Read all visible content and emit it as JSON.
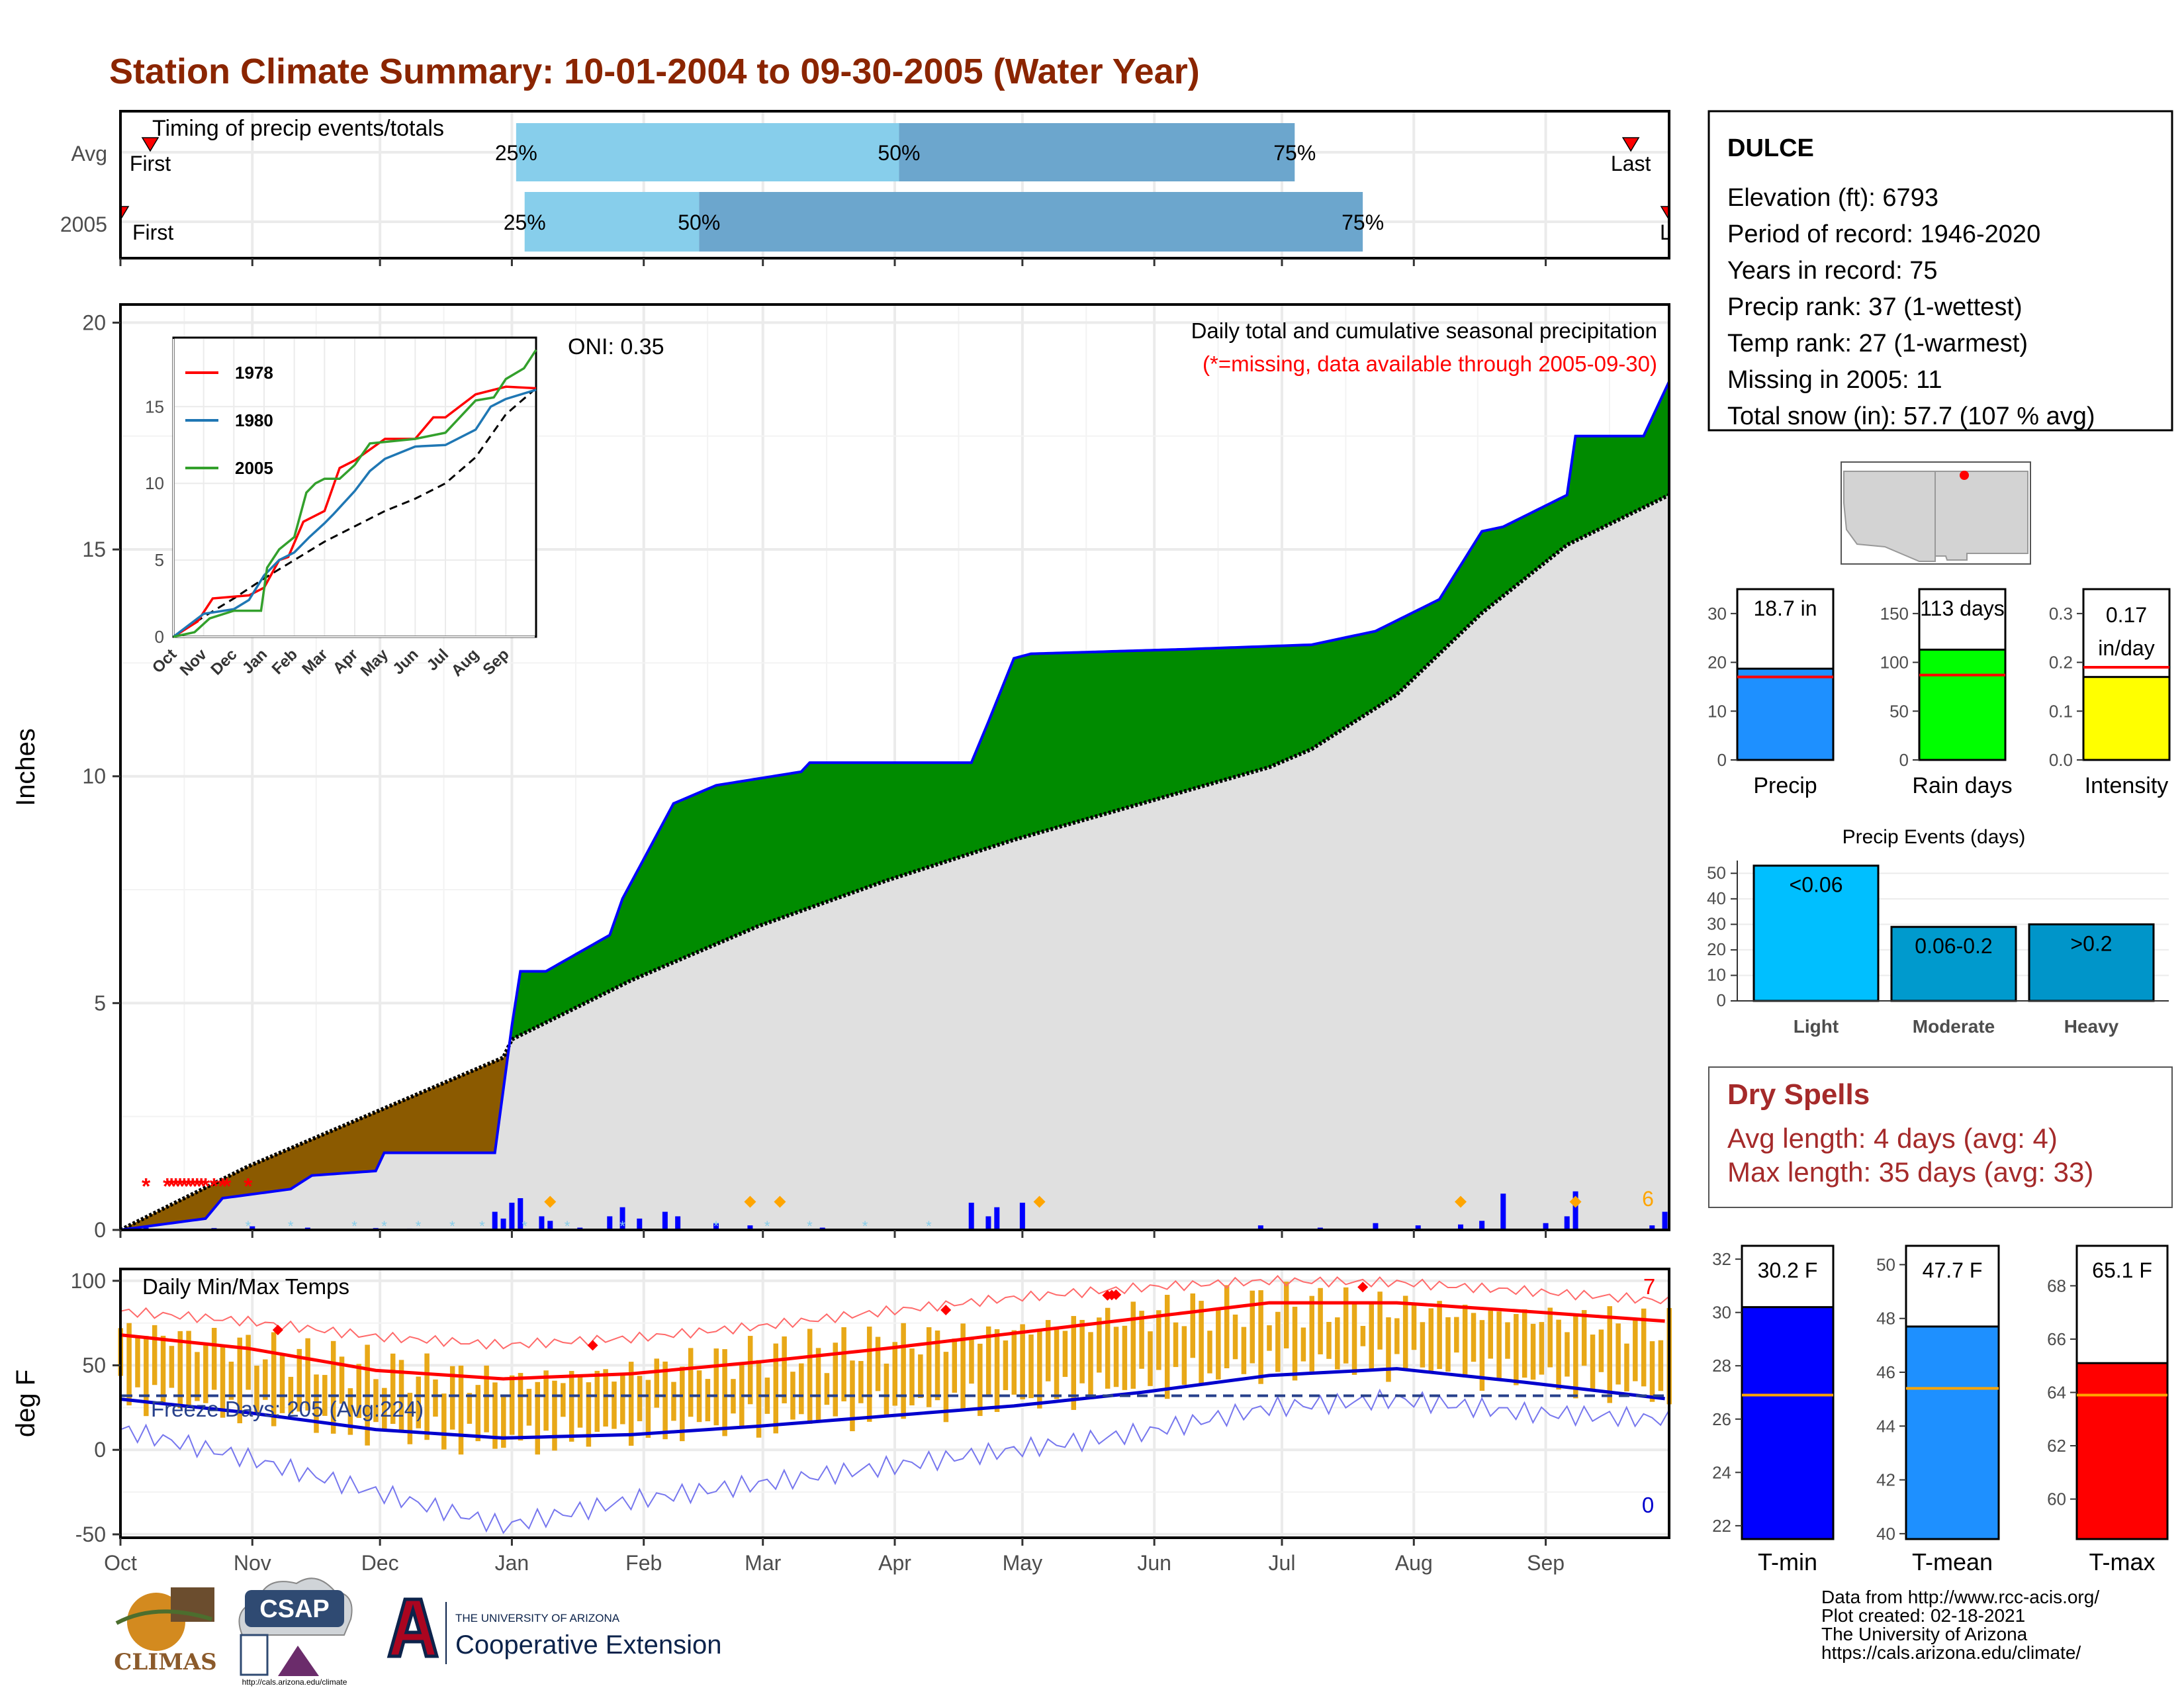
{
  "title": "Station Climate Summary: 10-01-2004 to 09-30-2005 (Water Year)",
  "timing": {
    "label": "Timing of precip events/totals",
    "rows": [
      {
        "name": "Avg",
        "first_label": "First",
        "last_label": "Last",
        "q": {
          "p25": "25%",
          "p50": "50%",
          "p75": "75%"
        },
        "p25_day": 93,
        "p50_day": 183,
        "p75_day": 276,
        "first_day": 7,
        "last_day": 355
      },
      {
        "name": "2005",
        "first_label": "First",
        "last_label": "Last",
        "q": {
          "p25": "25%",
          "p50": "50%",
          "p75": "75%"
        },
        "p25_day": 95,
        "p50_day": 136,
        "p75_day": 292,
        "first_day": 0,
        "last_day": 364
      }
    ],
    "colors": {
      "light": "#87CEEB",
      "dark": "#6CA6CD",
      "marker": "#FF0000"
    }
  },
  "precip_panel": {
    "ylabel": "Inches",
    "oni": "ONI: 0.35",
    "subtitle": "Daily total and cumulative seasonal precipitation",
    "missing_note": "(*=missing, data available through 2005-09-30)",
    "corner_count": "6",
    "ylim": [
      0,
      20.4
    ],
    "yticks": [
      "0",
      "5",
      "10",
      "15",
      "20"
    ],
    "colors": {
      "above": "#008B00",
      "below": "#8B5A00",
      "avg_fill": "#E0E0E0",
      "obs_line": "#0000FF",
      "bars": "#0000FF",
      "missing": "#FF0000",
      "snow": "#87CEEB",
      "extreme": "#FFA500"
    },
    "chart_data": {
      "type": "area",
      "x_unit": "days since 2004-10-01",
      "avg_cumulative": {
        "x": [
          0,
          30,
          60,
          90,
          92,
          120,
          150,
          180,
          210,
          240,
          270,
          280,
          300,
          320,
          340,
          364
        ],
        "y": [
          0,
          1.4,
          2.6,
          3.8,
          4.2,
          5.5,
          6.7,
          7.7,
          8.6,
          9.4,
          10.2,
          10.6,
          11.8,
          13.6,
          15.1,
          16.2
        ]
      },
      "observed_cumulative": {
        "x": [
          0,
          20,
          24,
          40,
          45,
          60,
          62,
          88,
          92,
          94,
          100,
          115,
          118,
          130,
          140,
          160,
          162,
          170,
          180,
          200,
          204,
          210,
          214,
          250,
          280,
          295,
          310,
          320,
          325,
          340,
          342,
          358,
          364
        ],
        "y": [
          0,
          0.25,
          0.7,
          0.9,
          1.2,
          1.3,
          1.7,
          1.7,
          4.5,
          5.7,
          5.7,
          6.5,
          7.3,
          9.4,
          9.8,
          10.1,
          10.3,
          10.3,
          10.3,
          10.3,
          11.2,
          12.6,
          12.7,
          12.8,
          12.9,
          13.2,
          13.9,
          15.4,
          15.5,
          16.2,
          17.5,
          17.5,
          18.7
        ]
      },
      "daily_bars": {
        "x": [
          6,
          14,
          22,
          31,
          44,
          60,
          68,
          88,
          90,
          92,
          94,
          99,
          101,
          108,
          115,
          118,
          122,
          128,
          131,
          140,
          148,
          165,
          200,
          204,
          206,
          212,
          268,
          282,
          295,
          305,
          315,
          320,
          325,
          335,
          340,
          342,
          360,
          363
        ],
        "y": [
          0.05,
          0.03,
          0.04,
          0.08,
          0.05,
          0.04,
          0.03,
          0.4,
          0.25,
          0.6,
          0.7,
          0.3,
          0.2,
          0.05,
          0.3,
          0.5,
          0.25,
          0.4,
          0.3,
          0.15,
          0.1,
          0.05,
          0.6,
          0.3,
          0.5,
          0.6,
          0.1,
          0.05,
          0.15,
          0.1,
          0.12,
          0.2,
          0.8,
          0.15,
          0.3,
          0.85,
          0.1,
          0.4
        ]
      },
      "missing_days": [
        6,
        11,
        12,
        13,
        14,
        15,
        16,
        17,
        18,
        19,
        20,
        22,
        24,
        25,
        30
      ],
      "extreme_days": [
        101,
        148,
        155,
        216,
        315,
        342
      ]
    },
    "inset": {
      "legend": [
        "1978",
        "1980",
        "2005"
      ],
      "colors": [
        "#FF0000",
        "#1F77B4",
        "#33A02C"
      ],
      "yticks": [
        "0",
        "5",
        "10",
        "15"
      ],
      "xticks": [
        "Oct",
        "Nov",
        "Dec",
        "Jan",
        "Feb",
        "Mar",
        "Apr",
        "May",
        "Jun",
        "Jul",
        "Aug",
        "Sep"
      ],
      "chart_data": {
        "type": "line",
        "ylim": [
          0,
          19.5
        ],
        "x_unit": "months since Oct 1",
        "avg": {
          "x": [
            0,
            1,
            2,
            3,
            4,
            5,
            6,
            7,
            8,
            9,
            10,
            11,
            12
          ],
          "y": [
            0,
            1.3,
            2.5,
            3.8,
            5.0,
            6.2,
            7.2,
            8.2,
            9.0,
            10.0,
            11.7,
            14.5,
            16.2
          ]
        },
        "series": [
          {
            "name": "1978",
            "x": [
              0,
              0.8,
              1.3,
              2.5,
              3.0,
              3.5,
              3.8,
              4.3,
              5.0,
              5.5,
              6.0,
              7.0,
              8.0,
              8.6,
              9.0,
              10.0,
              11.0,
              12.0
            ],
            "y": [
              0,
              1.0,
              2.5,
              2.7,
              3.2,
              5.0,
              5.2,
              7.5,
              8.2,
              11.0,
              11.5,
              12.9,
              12.9,
              14.3,
              14.3,
              15.8,
              16.3,
              16.2
            ]
          },
          {
            "name": "1980",
            "x": [
              0,
              1.0,
              2.0,
              2.5,
              3.0,
              3.5,
              4.0,
              4.5,
              5.0,
              5.3,
              6.0,
              6.5,
              7.0,
              8.0,
              9.0,
              10.0,
              10.5,
              11.0,
              12.0
            ],
            "y": [
              0,
              1.5,
              1.8,
              2.4,
              4.0,
              5.0,
              5.5,
              6.5,
              7.4,
              8.0,
              9.5,
              10.8,
              11.6,
              12.4,
              12.5,
              13.5,
              15.0,
              15.5,
              16.1
            ]
          },
          {
            "name": "2005",
            "x": [
              0,
              0.7,
              1.2,
              2.0,
              2.9,
              3.1,
              3.5,
              4.0,
              4.4,
              4.7,
              5.0,
              5.5,
              6.0,
              6.5,
              7.0,
              8.0,
              9.0,
              10.0,
              10.6,
              11.0,
              11.6,
              12.0
            ],
            "y": [
              0,
              0.3,
              1.2,
              1.7,
              1.7,
              4.5,
              5.7,
              6.5,
              9.4,
              10.0,
              10.3,
              10.3,
              11.2,
              12.6,
              12.7,
              12.9,
              13.3,
              15.4,
              15.6,
              16.8,
              17.5,
              18.7
            ]
          }
        ]
      }
    }
  },
  "temp_panel": {
    "ylabel": "deg F",
    "label": "Daily Min/Max Temps",
    "freeze": "Freeze Days: 205 (Avg:224)",
    "count_hot": "7",
    "count_cold": "0",
    "ylim": [
      -52,
      107
    ],
    "yticks": [
      "-50",
      "0",
      "50",
      "100"
    ],
    "months": [
      "Oct",
      "Nov",
      "Dec",
      "Jan",
      "Feb",
      "Mar",
      "Apr",
      "May",
      "Jun",
      "Jul",
      "Aug",
      "Sep"
    ],
    "colors": {
      "bars": "#E8A817",
      "avg_max": "#FF0000",
      "avg_min": "#0000CD",
      "rec_max": "#FF6A6A",
      "rec_min": "#7777EE",
      "freeze": "#27408B"
    },
    "chart_data": {
      "type": "bar",
      "x_unit": "days since 2004-10-01",
      "avg_max": {
        "x": [
          0,
          30,
          60,
          90,
          120,
          150,
          180,
          210,
          240,
          270,
          300,
          330,
          364
        ],
        "y": [
          68,
          60,
          47,
          42,
          45,
          52,
          60,
          69,
          78,
          87,
          87,
          82,
          76
        ]
      },
      "avg_min": {
        "x": [
          0,
          30,
          60,
          90,
          120,
          150,
          180,
          210,
          240,
          270,
          300,
          330,
          364
        ],
        "y": [
          30,
          22,
          12,
          7,
          9,
          14,
          20,
          26,
          34,
          44,
          48,
          40,
          30
        ]
      },
      "record_max": {
        "x": [
          0,
          30,
          60,
          90,
          120,
          150,
          180,
          210,
          240,
          270,
          300,
          330,
          364
        ],
        "y": [
          82,
          76,
          67,
          62,
          66,
          73,
          82,
          90,
          96,
          100,
          99,
          94,
          88
        ]
      },
      "record_min": {
        "x": [
          0,
          30,
          60,
          90,
          120,
          150,
          180,
          210,
          240,
          270,
          300,
          330,
          364
        ],
        "y": [
          12,
          -5,
          -25,
          -45,
          -30,
          -20,
          -10,
          0,
          10,
          25,
          30,
          22,
          18
        ]
      },
      "obs_max_range": {
        "x": [
          0,
          30,
          60,
          90,
          120,
          150,
          180,
          210,
          240,
          270,
          300,
          330,
          364
        ],
        "y": [
          72,
          60,
          48,
          40,
          46,
          55,
          63,
          70,
          80,
          86,
          84,
          79,
          72
        ]
      },
      "obs_min_range": {
        "x": [
          0,
          30,
          60,
          90,
          120,
          150,
          180,
          210,
          240,
          270,
          300,
          330,
          364
        ],
        "y": [
          33,
          25,
          12,
          5,
          12,
          17,
          24,
          30,
          40,
          50,
          52,
          44,
          33
        ]
      },
      "freeze_line": 32,
      "record_days": [
        37,
        111,
        194,
        232,
        233,
        234,
        292
      ]
    }
  },
  "station": {
    "name": "DULCE",
    "elevation": "Elevation (ft): 6793",
    "period": "Period of record: 1946-2020",
    "years": "Years in record: 75",
    "precip_rank": "Precip rank: 37 (1-wettest)",
    "temp_rank": "Temp rank: 27 (1-warmest)",
    "missing": "Missing in 2005: 11",
    "snow": "Total snow (in): 57.7 (107 % avg)"
  },
  "summary_bars": [
    {
      "name": "Precip",
      "value": 18.7,
      "avg": 17.0,
      "label": "18.7 in",
      "ymax": 35,
      "yticks": [
        "0",
        "10",
        "20",
        "30"
      ],
      "tickvals": [
        0,
        10,
        20,
        30
      ],
      "color": "#1E90FF"
    },
    {
      "name": "Rain days",
      "value": 113,
      "avg": 87,
      "label": "113 days",
      "ymax": 175,
      "yticks": [
        "0",
        "50",
        "100",
        "150"
      ],
      "tickvals": [
        0,
        50,
        100,
        150
      ],
      "color": "#00FF00"
    },
    {
      "name": "Intensity",
      "value": 0.17,
      "avg": 0.19,
      "label": "0.17 in/day",
      "label_lines": [
        "0.17",
        "in/day"
      ],
      "ymax": 0.35,
      "yticks": [
        "0.0",
        "0.1",
        "0.2",
        "0.3"
      ],
      "tickvals": [
        0,
        0.1,
        0.2,
        0.3
      ],
      "color": "#FFFF00"
    }
  ],
  "events": {
    "title": "Precip Events (days)",
    "yticks": [
      "0",
      "10",
      "20",
      "30",
      "40",
      "50"
    ],
    "chart_data": {
      "type": "bar",
      "categories": [
        "Light",
        "Moderate",
        "Heavy"
      ],
      "values": [
        53,
        29,
        30
      ],
      "labels": [
        "<0.06",
        "0.06-0.2",
        ">0.2"
      ],
      "ylim": [
        0,
        55
      ]
    },
    "colors": [
      "#00BFFF",
      "#009ACD",
      "#0095C9"
    ]
  },
  "dry_spells": {
    "title": "Dry Spells",
    "avg": "Avg length: 4 days (avg: 4)",
    "max": "Max length: 35 days (avg: 33)"
  },
  "temp_bars": [
    {
      "name": "T-min",
      "value": 30.2,
      "avg": 26.9,
      "label": "30.2 F",
      "ylim": [
        21.5,
        32.5
      ],
      "yticks": [
        "22",
        "24",
        "26",
        "28",
        "30",
        "32"
      ],
      "tickvals": [
        22,
        24,
        26,
        28,
        30,
        32
      ],
      "color": "#0000FF"
    },
    {
      "name": "T-mean",
      "value": 47.7,
      "avg": 45.4,
      "label": "47.7 F",
      "ylim": [
        39.8,
        50.7
      ],
      "yticks": [
        "40",
        "42",
        "44",
        "46",
        "48",
        "50"
      ],
      "tickvals": [
        40,
        42,
        44,
        46,
        48,
        50
      ],
      "color": "#1E90FF"
    },
    {
      "name": "T-max",
      "value": 65.1,
      "avg": 63.9,
      "label": "65.1 F",
      "ylim": [
        58.5,
        69.5
      ],
      "yticks": [
        "60",
        "62",
        "64",
        "66",
        "68"
      ],
      "tickvals": [
        60,
        62,
        64,
        66,
        68
      ],
      "color": "#FF0000"
    }
  ],
  "logos": {
    "climas": "CLIMAS",
    "csap": "CSAP",
    "csap_url": "http://cals.arizona.edu/climate",
    "ua_small": "THE UNIVERSITY OF ARIZONA",
    "ua_big": "Cooperative Extension"
  },
  "credits": {
    "line1": "Data from http://www.rcc-acis.org/",
    "line2": "Plot created: 02-18-2021",
    "line3": "The University of Arizona",
    "line4": "https://cals.arizona.edu/climate/"
  }
}
